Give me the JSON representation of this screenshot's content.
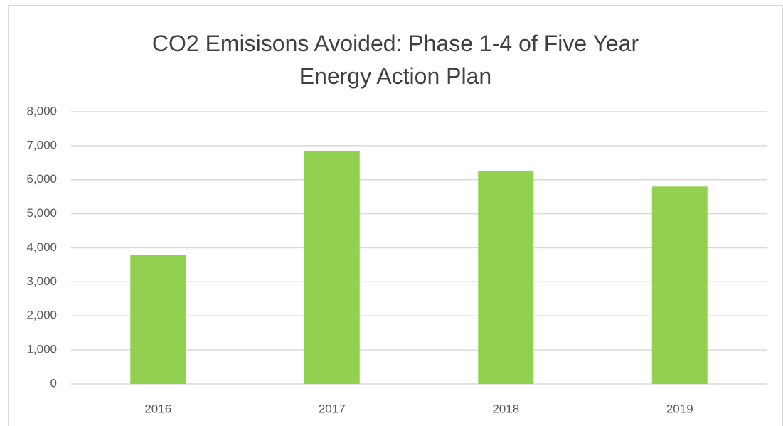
{
  "chart_data": {
    "type": "bar",
    "title": "CO2 Emisisons Avoided: Phase 1-4 of Five Year Energy Action Plan",
    "categories": [
      "2016",
      "2017",
      "2018",
      "2019"
    ],
    "values": [
      3800,
      6850,
      6260,
      5800
    ],
    "color": "#92d050",
    "ylim": [
      0,
      8000
    ],
    "yticks": [
      0,
      {
        "value": 1000,
        "label": "1,000"
      },
      {
        "value": 2000,
        "label": "2,000"
      },
      {
        "value": 3000,
        "label": "3,000"
      },
      {
        "value": 4000,
        "label": "4,000"
      },
      {
        "value": 5000,
        "label": "5,000"
      },
      {
        "value": 6000,
        "label": "6,000"
      },
      {
        "value": 7000,
        "label": "7,000"
      },
      {
        "value": 8000,
        "label": "8,000"
      }
    ],
    "grid": true
  }
}
